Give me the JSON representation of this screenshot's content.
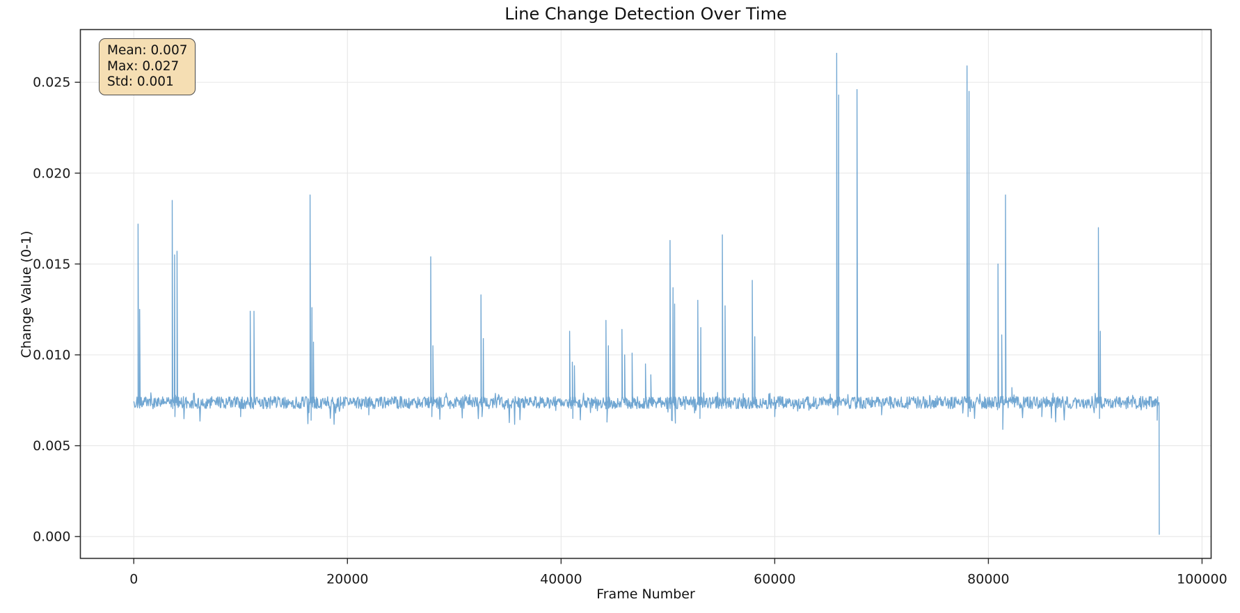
{
  "figure": {
    "title": "Line Change Detection Over Time",
    "x_axis_label": "Frame Number",
    "y_axis_label": "Change Value (0-1)"
  },
  "stats_box": {
    "lines": [
      "Mean: 0.007",
      "Max: 0.027",
      "Std: 0.001"
    ],
    "bg_color": "#F5DEB3",
    "border_color": "#4A4A4A",
    "text_color": "#111111"
  },
  "chart_data": {
    "type": "line",
    "title": "Line Change Detection Over Time",
    "xlabel": "Frame Number",
    "ylabel": "Change Value (0-1)",
    "xlim": [
      -5000,
      100850
    ],
    "ylim": [
      -0.0012,
      0.0279
    ],
    "grid": true,
    "grid_color": "#E7E7E7",
    "axis_color": "#2B2B2B",
    "tick_label_color": "#1A1A1A",
    "line_color": "#5797CA",
    "line_opacity": 0.85,
    "x_ticks": [
      {
        "value": 0,
        "label": "0"
      },
      {
        "value": 20000,
        "label": "20000"
      },
      {
        "value": 40000,
        "label": "40000"
      },
      {
        "value": 60000,
        "label": "60000"
      },
      {
        "value": 80000,
        "label": "80000"
      },
      {
        "value": 100000,
        "label": "100000"
      }
    ],
    "y_ticks": [
      {
        "value": 0.0,
        "label": "0.000"
      },
      {
        "value": 0.005,
        "label": "0.005"
      },
      {
        "value": 0.01,
        "label": "0.010"
      },
      {
        "value": 0.015,
        "label": "0.015"
      },
      {
        "value": 0.02,
        "label": "0.020"
      },
      {
        "value": 0.025,
        "label": "0.025"
      }
    ],
    "stats": {
      "mean": 0.007,
      "max": 0.027,
      "std": 0.001
    },
    "baseline": {
      "mean": 0.00737,
      "noise_amplitude": 0.00034,
      "start_frame": 0,
      "end_frame": 96000
    },
    "spikes": [
      [
        400,
        0.0172
      ],
      [
        550,
        0.0125
      ],
      [
        3600,
        0.0185
      ],
      [
        3820,
        0.0155
      ],
      [
        4050,
        0.0157
      ],
      [
        10900,
        0.0124
      ],
      [
        11250,
        0.0124
      ],
      [
        16500,
        0.0188
      ],
      [
        16680,
        0.0126
      ],
      [
        16820,
        0.0107
      ],
      [
        27800,
        0.0154
      ],
      [
        28000,
        0.0105
      ],
      [
        32500,
        0.0133
      ],
      [
        32720,
        0.0109
      ],
      [
        40800,
        0.0113
      ],
      [
        41050,
        0.0096
      ],
      [
        41250,
        0.0094
      ],
      [
        44200,
        0.0119
      ],
      [
        44430,
        0.0105
      ],
      [
        45700,
        0.0114
      ],
      [
        45950,
        0.01
      ],
      [
        46650,
        0.0101
      ],
      [
        47900,
        0.0095
      ],
      [
        48400,
        0.0089
      ],
      [
        50200,
        0.0163
      ],
      [
        50480,
        0.0137
      ],
      [
        50630,
        0.0128
      ],
      [
        52800,
        0.013
      ],
      [
        53080,
        0.0115
      ],
      [
        55100,
        0.0166
      ],
      [
        55350,
        0.0127
      ],
      [
        57900,
        0.0141
      ],
      [
        58130,
        0.011
      ],
      [
        65800,
        0.0266
      ],
      [
        65990,
        0.0243
      ],
      [
        67700,
        0.0246
      ],
      [
        78000,
        0.0259
      ],
      [
        78190,
        0.0245
      ],
      [
        80900,
        0.015
      ],
      [
        81250,
        0.0111
      ],
      [
        81600,
        0.0188
      ],
      [
        82200,
        0.0082
      ],
      [
        90300,
        0.017
      ],
      [
        90480,
        0.0113
      ]
    ],
    "dips": [
      [
        3850,
        0.0066
      ],
      [
        10000,
        0.0066
      ],
      [
        16600,
        0.0064
      ],
      [
        22000,
        0.0067
      ],
      [
        27900,
        0.0066
      ],
      [
        32600,
        0.0066
      ],
      [
        41100,
        0.0065
      ],
      [
        44300,
        0.0063
      ],
      [
        50350,
        0.0064
      ],
      [
        53000,
        0.0065
      ],
      [
        60000,
        0.0066
      ],
      [
        65900,
        0.0067
      ],
      [
        70000,
        0.0067
      ],
      [
        78100,
        0.0066
      ],
      [
        81350,
        0.0059
      ],
      [
        85000,
        0.0066
      ],
      [
        90400,
        0.0065
      ],
      [
        95800,
        0.0064
      ]
    ],
    "end_drop": {
      "frame": 96000,
      "value": 0.0001
    }
  }
}
